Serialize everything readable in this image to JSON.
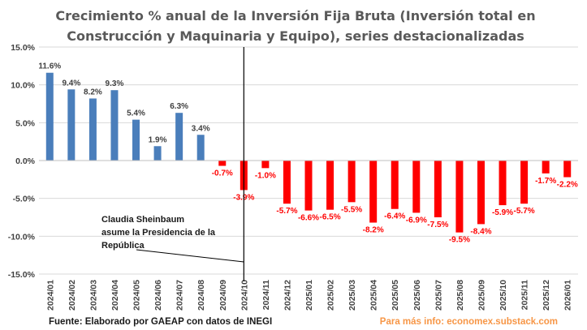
{
  "chart_data": {
    "type": "bar",
    "title": "Crecimiento % anual de la Inversión Fija Bruta (Inversión total en Construcción y Maquinaria y Equipo), series destacionalizadas",
    "title_lines": [
      "Crecimiento % anual de la Inversión Fija Bruta (Inversión total en",
      "Construcción y Maquinaria y Equipo), series destacionalizadas"
    ],
    "xlabel": "",
    "ylabel": "",
    "ylim": [
      -15,
      15
    ],
    "yticks": [
      15,
      10,
      5,
      0,
      -5,
      -10,
      -15
    ],
    "ytick_labels": [
      "15.0%",
      "10.0%",
      "5.0%",
      "0.0%",
      "-5.0%",
      "-10.0%",
      "-15.0%"
    ],
    "grid": true,
    "categories": [
      "2024/01",
      "2024/02",
      "2024/03",
      "2024/04",
      "2024/05",
      "2024/06",
      "2024/07",
      "2024/08",
      "2024/09",
      "2024/10",
      "2024/11",
      "2024/12",
      "2025/01",
      "2025/02",
      "2025/03",
      "2025/04",
      "2025/05",
      "2025/06",
      "2025/07",
      "2025/08",
      "2025/09",
      "2025/10",
      "2025/11",
      "2025/12",
      "2026/01"
    ],
    "values": [
      11.6,
      9.4,
      8.2,
      9.3,
      5.4,
      1.9,
      6.3,
      3.4,
      -0.7,
      -3.9,
      -1.0,
      -5.7,
      -6.6,
      -6.5,
      -5.5,
      -8.2,
      -6.4,
      -6.9,
      -7.5,
      -9.5,
      -8.4,
      -5.9,
      -5.7,
      -1.7,
      -2.2
    ],
    "data_labels": [
      "11.6%",
      "9.4%",
      "8.2%",
      "9.3%",
      "5.4%",
      "1.9%",
      "6.3%",
      "3.4%",
      "-0.7%",
      "-3.9%",
      "-1.0%",
      "-5.7%",
      "-6.6%",
      "-6.5%",
      "-5.5%",
      "-8.2%",
      "-6.4%",
      "-6.9%",
      "-7.5%",
      "-9.5%",
      "-8.4%",
      "-5.9%",
      "-5.7%",
      "-1.7%",
      "-2.2%"
    ],
    "colors": {
      "positive": "#4a7ebb",
      "negative": "#ff0000",
      "positive_label": "#404040",
      "negative_label": "#ff0000",
      "title": "#595959",
      "info": "#f79646"
    },
    "marker": {
      "category": "2024/10",
      "annotation_lines": [
        "Claudia Sheinbaum",
        "asume la Presidencia de la",
        "República"
      ]
    },
    "source": "Fuente: Elaborado por GAEAP con datos de INEGI",
    "more_info": "Para más info: economex.substack.com"
  }
}
